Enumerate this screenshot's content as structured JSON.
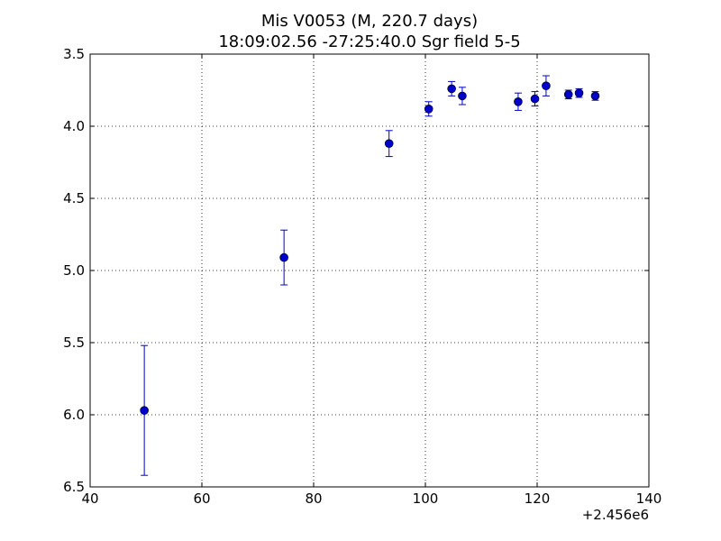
{
  "chart_data": {
    "type": "scatter",
    "title_line1": "Mis V0053 (M, 220.7 days)",
    "title_line2": "18:09:02.56 -27:25:40.0 Sgr field 5-5",
    "xlabel": "",
    "ylabel": "",
    "x_offset_label": "+2.456e6",
    "xlim": [
      40,
      140
    ],
    "ylim": [
      3.5,
      6.5
    ],
    "y_inverted": true,
    "grid": true,
    "grid_style": "dotted",
    "marker_color": "#0000cc",
    "x_ticks": [
      40,
      60,
      80,
      100,
      120,
      140
    ],
    "x_tick_labels": [
      "40",
      "60",
      "80",
      "100",
      "120",
      "140"
    ],
    "y_ticks": [
      3.5,
      4.0,
      4.5,
      5.0,
      5.5,
      6.0,
      6.5
    ],
    "y_tick_labels": [
      "3.5",
      "4.0",
      "4.5",
      "5.0",
      "5.5",
      "6.0",
      "6.5"
    ],
    "points": [
      {
        "x": 49.7,
        "y": 5.97,
        "err": 0.45
      },
      {
        "x": 74.7,
        "y": 4.91,
        "err": 0.19
      },
      {
        "x": 93.5,
        "y": 4.12,
        "err": 0.09
      },
      {
        "x": 100.6,
        "y": 3.88,
        "err": 0.05
      },
      {
        "x": 104.7,
        "y": 3.74,
        "err": 0.05
      },
      {
        "x": 106.6,
        "y": 3.79,
        "err": 0.06
      },
      {
        "x": 116.6,
        "y": 3.83,
        "err": 0.06
      },
      {
        "x": 119.6,
        "y": 3.81,
        "err": 0.05
      },
      {
        "x": 121.6,
        "y": 3.72,
        "err": 0.07
      },
      {
        "x": 125.6,
        "y": 3.78,
        "err": 0.03
      },
      {
        "x": 127.5,
        "y": 3.77,
        "err": 0.03
      },
      {
        "x": 130.4,
        "y": 3.79,
        "err": 0.03
      }
    ]
  }
}
